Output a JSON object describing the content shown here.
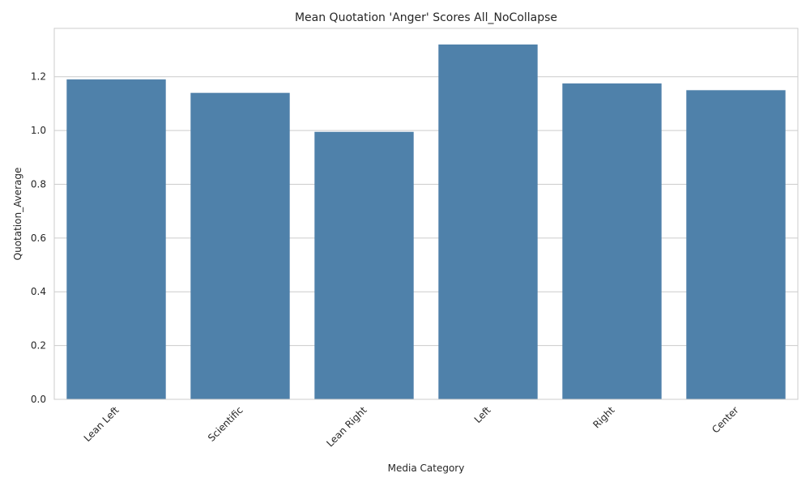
{
  "chart_data": {
    "type": "bar",
    "title": "Mean Quotation 'Anger' Scores All_NoCollapse",
    "xlabel": "Media Category",
    "ylabel": "Quotation_Average",
    "categories": [
      "Lean Left",
      "Scientific",
      "Lean Right",
      "Left",
      "Right",
      "Center"
    ],
    "values": [
      1.19,
      1.14,
      0.995,
      1.32,
      1.175,
      1.15
    ],
    "ylim": [
      0,
      1.38
    ],
    "yticks": [
      0.0,
      0.2,
      0.4,
      0.6,
      0.8,
      1.0,
      1.2
    ],
    "ytick_labels": [
      "0.0",
      "0.2",
      "0.4",
      "0.6",
      "0.8",
      "1.0",
      "1.2"
    ],
    "grid": true,
    "bar_color": "#4f81aa",
    "grid_color": "#cccccc"
  }
}
